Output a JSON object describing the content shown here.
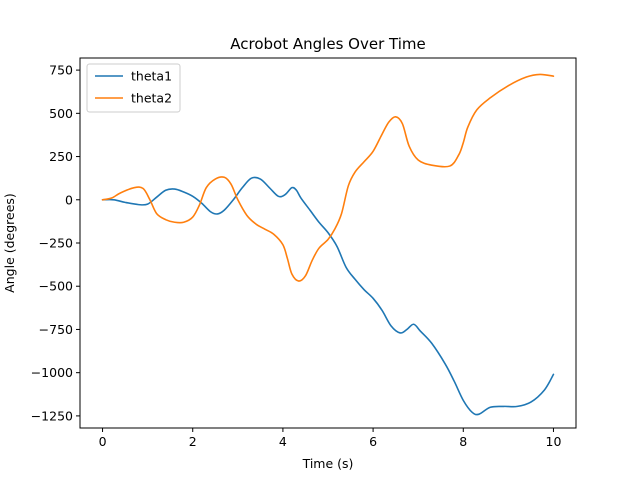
{
  "chart_data": {
    "type": "line",
    "title": "Acrobot Angles Over Time",
    "xlabel": "Time (s)",
    "ylabel": "Angle (degrees)",
    "xlim": [
      -0.5,
      10.5
    ],
    "ylim": [
      -1320,
      820
    ],
    "x_ticks": [
      0,
      2,
      4,
      6,
      8,
      10
    ],
    "x_tick_labels": [
      "0",
      "2",
      "4",
      "6",
      "8",
      "10"
    ],
    "y_ticks": [
      -1250,
      -1000,
      -750,
      -500,
      -250,
      0,
      250,
      500,
      750
    ],
    "y_tick_labels": [
      "−1250",
      "−1000",
      "−750",
      "−500",
      "−250",
      "0",
      "250",
      "500",
      "750"
    ],
    "grid": false,
    "legend_position": "upper-left",
    "series": [
      {
        "name": "theta1",
        "color": "#1f77b4",
        "points": [
          [
            0,
            0
          ],
          [
            0.25,
            0
          ],
          [
            0.5,
            -15
          ],
          [
            0.8,
            -28
          ],
          [
            1.0,
            -25
          ],
          [
            1.2,
            15
          ],
          [
            1.4,
            55
          ],
          [
            1.6,
            62
          ],
          [
            1.8,
            45
          ],
          [
            2.0,
            20
          ],
          [
            2.2,
            -20
          ],
          [
            2.4,
            -70
          ],
          [
            2.55,
            -82
          ],
          [
            2.7,
            -60
          ],
          [
            2.9,
            0
          ],
          [
            3.1,
            70
          ],
          [
            3.3,
            125
          ],
          [
            3.5,
            120
          ],
          [
            3.7,
            70
          ],
          [
            3.9,
            20
          ],
          [
            4.05,
            30
          ],
          [
            4.2,
            70
          ],
          [
            4.3,
            55
          ],
          [
            4.4,
            10
          ],
          [
            4.6,
            -60
          ],
          [
            4.8,
            -130
          ],
          [
            5.0,
            -190
          ],
          [
            5.2,
            -270
          ],
          [
            5.4,
            -390
          ],
          [
            5.6,
            -460
          ],
          [
            5.8,
            -520
          ],
          [
            6.0,
            -570
          ],
          [
            6.2,
            -640
          ],
          [
            6.4,
            -730
          ],
          [
            6.6,
            -770
          ],
          [
            6.75,
            -750
          ],
          [
            6.9,
            -720
          ],
          [
            7.05,
            -760
          ],
          [
            7.3,
            -830
          ],
          [
            7.6,
            -950
          ],
          [
            7.8,
            -1050
          ],
          [
            8.0,
            -1160
          ],
          [
            8.2,
            -1230
          ],
          [
            8.35,
            -1240
          ],
          [
            8.6,
            -1200
          ],
          [
            8.9,
            -1195
          ],
          [
            9.2,
            -1195
          ],
          [
            9.5,
            -1170
          ],
          [
            9.8,
            -1100
          ],
          [
            10.0,
            -1010
          ]
        ]
      },
      {
        "name": "theta2",
        "color": "#ff7f0e",
        "points": [
          [
            0,
            0
          ],
          [
            0.2,
            10
          ],
          [
            0.4,
            40
          ],
          [
            0.7,
            70
          ],
          [
            0.9,
            65
          ],
          [
            1.05,
            0
          ],
          [
            1.2,
            -80
          ],
          [
            1.4,
            -115
          ],
          [
            1.6,
            -130
          ],
          [
            1.8,
            -130
          ],
          [
            2.0,
            -100
          ],
          [
            2.15,
            -30
          ],
          [
            2.3,
            70
          ],
          [
            2.5,
            120
          ],
          [
            2.7,
            130
          ],
          [
            2.85,
            90
          ],
          [
            3.0,
            0
          ],
          [
            3.2,
            -90
          ],
          [
            3.4,
            -140
          ],
          [
            3.6,
            -170
          ],
          [
            3.8,
            -200
          ],
          [
            4.0,
            -260
          ],
          [
            4.1,
            -340
          ],
          [
            4.2,
            -430
          ],
          [
            4.35,
            -470
          ],
          [
            4.5,
            -440
          ],
          [
            4.65,
            -350
          ],
          [
            4.8,
            -280
          ],
          [
            5.0,
            -230
          ],
          [
            5.15,
            -170
          ],
          [
            5.3,
            -80
          ],
          [
            5.45,
            80
          ],
          [
            5.6,
            160
          ],
          [
            5.8,
            220
          ],
          [
            6.0,
            280
          ],
          [
            6.2,
            380
          ],
          [
            6.35,
            450
          ],
          [
            6.5,
            480
          ],
          [
            6.65,
            440
          ],
          [
            6.8,
            310
          ],
          [
            7.0,
            230
          ],
          [
            7.3,
            200
          ],
          [
            7.7,
            195
          ],
          [
            7.9,
            260
          ],
          [
            8.0,
            330
          ],
          [
            8.1,
            420
          ],
          [
            8.3,
            520
          ],
          [
            8.6,
            590
          ],
          [
            9.0,
            660
          ],
          [
            9.4,
            710
          ],
          [
            9.7,
            725
          ],
          [
            10.0,
            715
          ]
        ]
      }
    ]
  }
}
